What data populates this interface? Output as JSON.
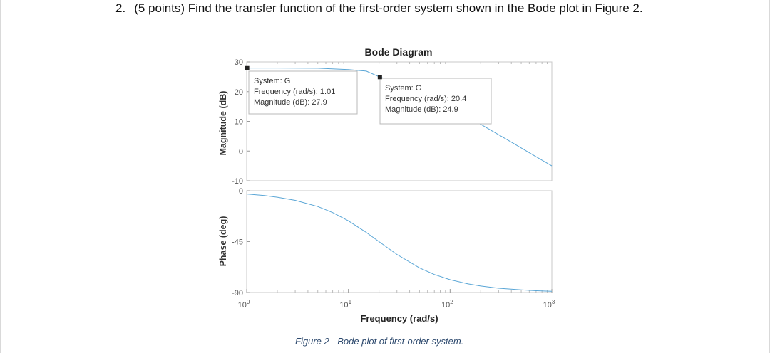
{
  "question": {
    "number": "2.",
    "text": "(5 points) Find the transfer function of the first-order system shown in the Bode plot in Figure 2."
  },
  "caption": "Figure 2 - Bode plot of first-order system.",
  "colors": {
    "line": "#5aa6d6",
    "axis": "#9a9a9a",
    "text": "#444444",
    "caption": "#2e4a6e"
  },
  "chart_data": {
    "type": "line",
    "title": "Bode Diagram",
    "xlabel": "Frequency (rad/s)",
    "x_scale": "log",
    "xlim": [
      1,
      1000
    ],
    "xticks": [
      {
        "value": 1,
        "base": "10",
        "exp": "0"
      },
      {
        "value": 10,
        "base": "10",
        "exp": "1"
      },
      {
        "value": 100,
        "base": "10",
        "exp": "2"
      },
      {
        "value": 1000,
        "base": "10",
        "exp": "3"
      }
    ],
    "magnitude": {
      "ylabel": "Magnitude (dB)",
      "ylim": [
        -10,
        30
      ],
      "yticks": [
        "30",
        "20",
        "10",
        "0",
        "-10"
      ],
      "series": {
        "x": [
          1,
          2,
          5,
          10,
          15,
          20.4,
          30,
          40,
          60,
          100,
          200,
          400,
          700,
          1000
        ],
        "y": [
          27.95,
          27.94,
          27.86,
          27.44,
          26.9,
          24.9,
          23.3,
          21.8,
          19.0,
          14.9,
          9.0,
          3.0,
          -1.9,
          -5.0
        ]
      },
      "datatips": [
        {
          "system": "System: G",
          "frequency": "Frequency (rad/s): 1.01",
          "magnitude": "Magnitude (dB): 27.9",
          "x": 1.01,
          "y": 27.9
        },
        {
          "system": "System: G",
          "frequency": "Frequency (rad/s): 20.4",
          "magnitude": "Magnitude (dB): 24.9",
          "x": 20.4,
          "y": 24.9
        }
      ]
    },
    "phase": {
      "ylabel": "Phase (deg)",
      "ylim": [
        -90,
        0
      ],
      "yticks": [
        "0",
        "-45",
        "-90"
      ],
      "series": {
        "x": [
          1,
          1.5,
          2,
          3,
          5,
          7,
          10,
          15,
          20,
          30,
          50,
          70,
          100,
          150,
          200,
          300,
          500,
          700,
          1000
        ],
        "y": [
          -2.9,
          -4.3,
          -5.7,
          -8.5,
          -14.0,
          -19.3,
          -26.6,
          -36.9,
          -45.0,
          -56.3,
          -68.2,
          -74.1,
          -78.7,
          -82.4,
          -84.3,
          -86.2,
          -87.7,
          -88.4,
          -88.9
        ]
      }
    },
    "grid": false
  }
}
